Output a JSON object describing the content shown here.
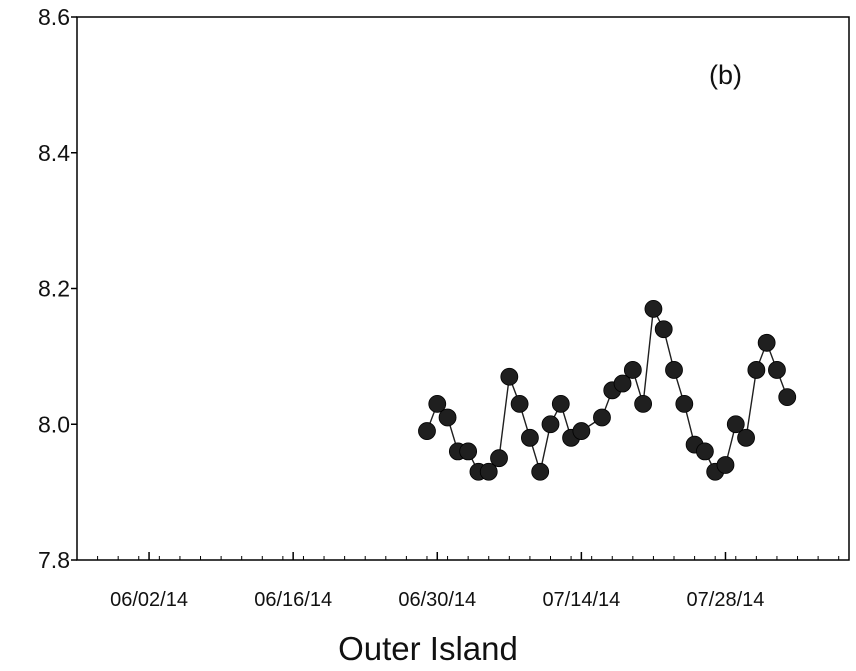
{
  "chart_data": {
    "type": "scatter",
    "panel_label": "(b)",
    "xlabel": "Outer Island",
    "ylabel": "",
    "x_axis_type": "date",
    "xlim": [
      "2014-05-26",
      "2014-08-09"
    ],
    "ylim": [
      7.8,
      8.6
    ],
    "y_ticks": [
      "7.8",
      "8.0",
      "8.2",
      "8.4",
      "8.6"
    ],
    "x_ticks": [
      {
        "date": "2014-06-02",
        "label": "06/02/14"
      },
      {
        "date": "2014-06-16",
        "label": "06/16/14"
      },
      {
        "date": "2014-06-30",
        "label": "06/30/14"
      },
      {
        "date": "2014-07-14",
        "label": "07/14/14"
      },
      {
        "date": "2014-07-28",
        "label": "07/28/14"
      }
    ],
    "grid": false,
    "marker": "filled-circle",
    "connected": true,
    "colors": {
      "marker": "#1f1f1f",
      "line": "#1f1f1f",
      "axis": "#000000"
    },
    "series": [
      {
        "points": [
          {
            "x": "2014-06-29",
            "y": 7.99
          },
          {
            "x": "2014-06-30",
            "y": 8.03
          },
          {
            "x": "2014-07-01",
            "y": 8.01
          },
          {
            "x": "2014-07-02",
            "y": 7.96
          },
          {
            "x": "2014-07-03",
            "y": 7.96
          },
          {
            "x": "2014-07-04",
            "y": 7.93
          },
          {
            "x": "2014-07-05",
            "y": 7.93
          },
          {
            "x": "2014-07-06",
            "y": 7.95
          },
          {
            "x": "2014-07-07",
            "y": 8.07
          },
          {
            "x": "2014-07-08",
            "y": 8.03
          },
          {
            "x": "2014-07-09",
            "y": 7.98
          },
          {
            "x": "2014-07-10",
            "y": 7.93
          },
          {
            "x": "2014-07-11",
            "y": 8.0
          },
          {
            "x": "2014-07-12",
            "y": 8.03
          },
          {
            "x": "2014-07-13",
            "y": 7.98
          },
          {
            "x": "2014-07-14",
            "y": 7.99
          },
          {
            "x": "2014-07-16",
            "y": 8.01
          },
          {
            "x": "2014-07-17",
            "y": 8.05
          },
          {
            "x": "2014-07-18",
            "y": 8.06
          },
          {
            "x": "2014-07-19",
            "y": 8.08
          },
          {
            "x": "2014-07-20",
            "y": 8.03
          },
          {
            "x": "2014-07-21",
            "y": 8.17
          },
          {
            "x": "2014-07-22",
            "y": 8.14
          },
          {
            "x": "2014-07-23",
            "y": 8.08
          },
          {
            "x": "2014-07-24",
            "y": 8.03
          },
          {
            "x": "2014-07-25",
            "y": 7.97
          },
          {
            "x": "2014-07-26",
            "y": 7.96
          },
          {
            "x": "2014-07-27",
            "y": 7.93
          },
          {
            "x": "2014-07-28",
            "y": 7.94
          },
          {
            "x": "2014-07-29",
            "y": 8.0
          },
          {
            "x": "2014-07-30",
            "y": 7.98
          },
          {
            "x": "2014-07-31",
            "y": 8.08
          },
          {
            "x": "2014-08-01",
            "y": 8.12
          },
          {
            "x": "2014-08-02",
            "y": 8.08
          },
          {
            "x": "2014-08-03",
            "y": 8.04
          }
        ]
      }
    ]
  }
}
